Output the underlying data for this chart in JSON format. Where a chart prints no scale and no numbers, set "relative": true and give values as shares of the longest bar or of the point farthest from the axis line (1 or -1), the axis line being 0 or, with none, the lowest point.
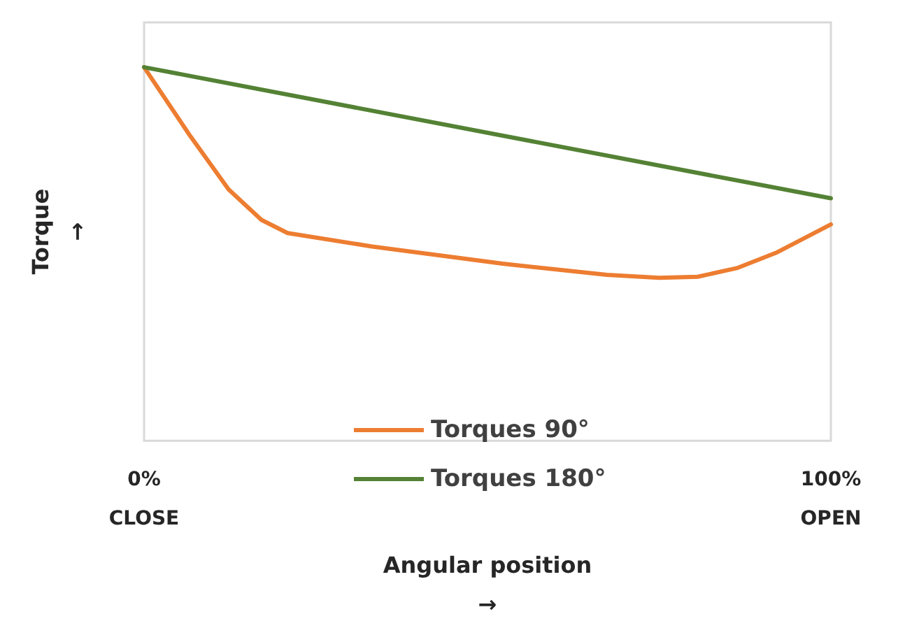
{
  "chart_data": {
    "type": "line",
    "relative": true,
    "xlabel": "Angular position\n→",
    "ylabel": "Torque\n→",
    "xlim": [
      0,
      100
    ],
    "xticks": [
      {
        "value": 0,
        "label": "0%\nCLOSE"
      },
      {
        "value": 100,
        "label": "100%\nOPEN"
      }
    ],
    "legend": "bottom",
    "marker": "none",
    "line_style": "solid",
    "grid": false,
    "series": [
      {
        "name": "Torques 90°",
        "color": "#ed7d31",
        "x": [
          0,
          6.6,
          12.3,
          17.1,
          20.9,
          33.2,
          52.2,
          67.4,
          75,
          80.6,
          86.3,
          92,
          100
        ],
        "values": [
          1,
          0.819,
          0.673,
          0.591,
          0.556,
          0.52,
          0.474,
          0.444,
          0.436,
          0.439,
          0.462,
          0.503,
          0.579
        ]
      },
      {
        "name": "Torques 180°",
        "color": "#548235",
        "x": [
          0,
          100
        ],
        "values": [
          1,
          0.649
        ]
      }
    ]
  }
}
